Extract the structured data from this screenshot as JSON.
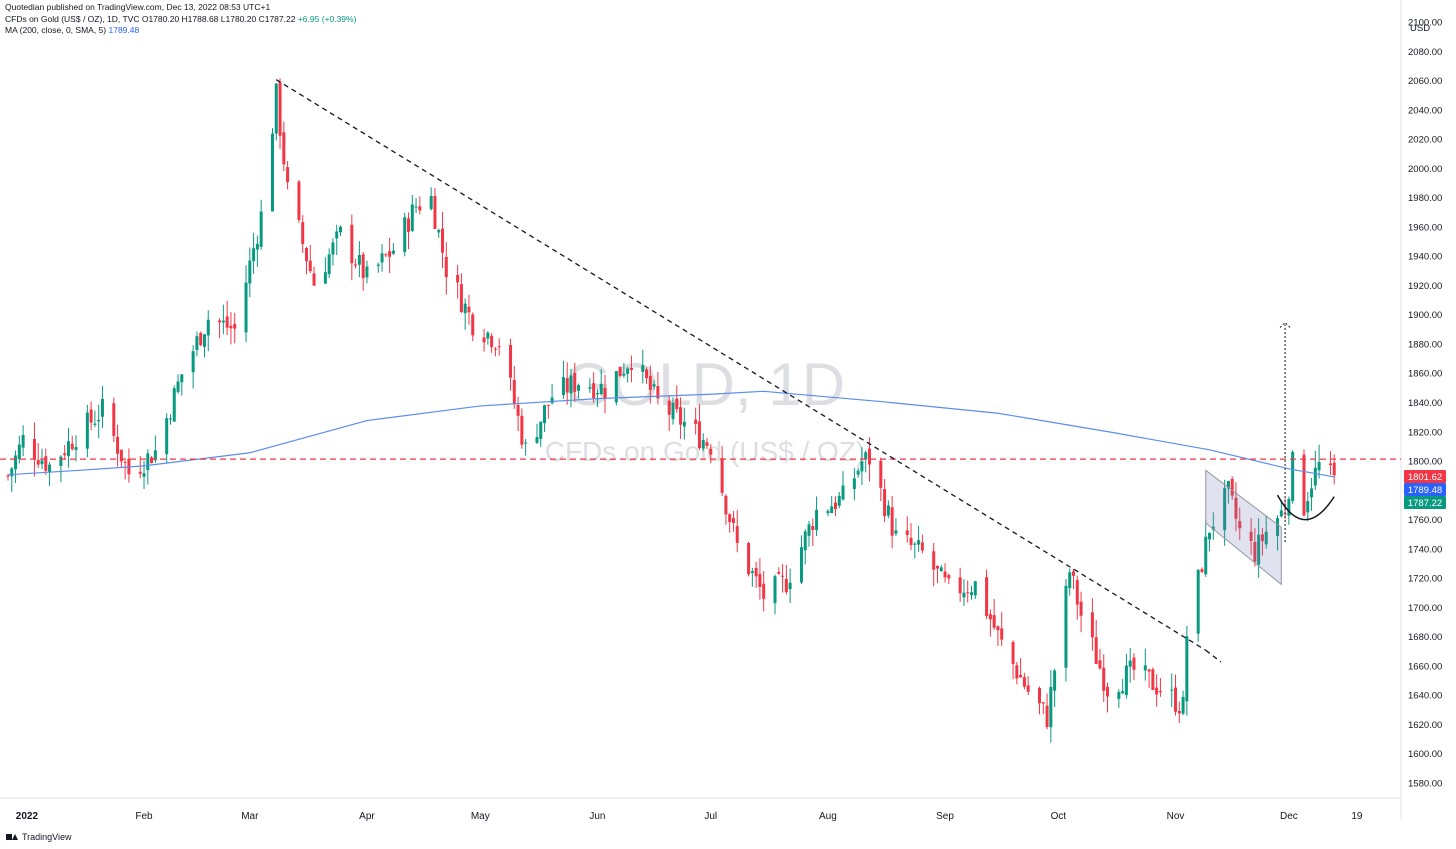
{
  "header": {
    "publisher": "Quotedian published on TradingView.com, Dec 13, 2022 08:53 UTC+1",
    "symbol_line": "CFDs on Gold (US$ / OZ), 1D, TVC",
    "ohlc": "O1780.20  H1788.68  L1780.20  C1787.22",
    "change": "+6.95 (+0.39%)",
    "ma_label": "MA (200, close, 0, SMA, 5)",
    "ma_value": "1789.48"
  },
  "watermark": {
    "symbol": "GOLD, 1D",
    "description": "CFDs on Gold (US$ / OZ)"
  },
  "footer": {
    "brand": "TradingView"
  },
  "colors": {
    "up": "#089981",
    "down": "#f23645",
    "ma": "#5b8def",
    "hline": "#f23645",
    "price_tag": "#089981",
    "ma_tag": "#2962ff"
  },
  "chart_data": {
    "type": "candlestick",
    "currency": "USD",
    "ylim": [
      1570,
      2110
    ],
    "y_ticks": [
      1580,
      1600,
      1620,
      1640,
      1660,
      1680,
      1700,
      1720,
      1740,
      1760,
      1780,
      1800,
      1820,
      1840,
      1860,
      1880,
      1900,
      1920,
      1940,
      1960,
      1980,
      2000,
      2020,
      2040,
      2060,
      2080,
      2100
    ],
    "x_ticks": [
      {
        "label": "2022",
        "date": "2022-01-01"
      },
      {
        "label": "Feb",
        "date": "2022-02-01"
      },
      {
        "label": "Mar",
        "date": "2022-03-01"
      },
      {
        "label": "Apr",
        "date": "2022-04-01"
      },
      {
        "label": "May",
        "date": "2022-05-01"
      },
      {
        "label": "Jun",
        "date": "2022-06-01"
      },
      {
        "label": "Jul",
        "date": "2022-07-01"
      },
      {
        "label": "Aug",
        "date": "2022-08-01"
      },
      {
        "label": "Sep",
        "date": "2022-09-01"
      },
      {
        "label": "Oct",
        "date": "2022-10-01"
      },
      {
        "label": "Nov",
        "date": "2022-11-01"
      },
      {
        "label": "Dec",
        "date": "2022-12-01"
      },
      {
        "label": "19",
        "date": "2022-12-19"
      }
    ],
    "price_tags": [
      {
        "value": 1801.62,
        "label": "1801.62",
        "color": "#f23645"
      },
      {
        "value": 1789.48,
        "label": "1789.48",
        "color": "#2962ff"
      },
      {
        "value": 1787.22,
        "label": "1787.22",
        "color": "#089981"
      }
    ],
    "closes": [
      [
        "2021-12-27",
        1790
      ],
      [
        "2021-12-31",
        1815
      ],
      [
        "2022-01-07",
        1797
      ],
      [
        "2022-01-14",
        1818
      ],
      [
        "2022-01-21",
        1835
      ],
      [
        "2022-01-28",
        1792
      ],
      [
        "2022-02-04",
        1807
      ],
      [
        "2022-02-11",
        1860
      ],
      [
        "2022-02-18",
        1898
      ],
      [
        "2022-02-25",
        1890
      ],
      [
        "2022-03-04",
        1968
      ],
      [
        "2022-03-08",
        2050
      ],
      [
        "2022-03-11",
        1985
      ],
      [
        "2022-03-18",
        1922
      ],
      [
        "2022-03-25",
        1955
      ],
      [
        "2022-04-01",
        1925
      ],
      [
        "2022-04-08",
        1945
      ],
      [
        "2022-04-14",
        1975
      ],
      [
        "2022-04-18",
        1980
      ],
      [
        "2022-04-22",
        1932
      ],
      [
        "2022-04-29",
        1895
      ],
      [
        "2022-05-06",
        1882
      ],
      [
        "2022-05-13",
        1808
      ],
      [
        "2022-05-20",
        1845
      ],
      [
        "2022-05-27",
        1855
      ],
      [
        "2022-06-03",
        1850
      ],
      [
        "2022-06-10",
        1871
      ],
      [
        "2022-06-17",
        1840
      ],
      [
        "2022-06-24",
        1826
      ],
      [
        "2022-07-01",
        1811
      ],
      [
        "2022-07-08",
        1742
      ],
      [
        "2022-07-15",
        1708
      ],
      [
        "2022-07-21",
        1718
      ],
      [
        "2022-07-29",
        1766
      ],
      [
        "2022-08-05",
        1775
      ],
      [
        "2022-08-10",
        1800
      ],
      [
        "2022-08-12",
        1802
      ],
      [
        "2022-08-19",
        1748
      ],
      [
        "2022-08-26",
        1737
      ],
      [
        "2022-09-02",
        1712
      ],
      [
        "2022-09-09",
        1716
      ],
      [
        "2022-09-16",
        1675
      ],
      [
        "2022-09-23",
        1643
      ],
      [
        "2022-09-28",
        1625
      ],
      [
        "2022-10-04",
        1725
      ],
      [
        "2022-10-07",
        1695
      ],
      [
        "2022-10-14",
        1645
      ],
      [
        "2022-10-21",
        1657
      ],
      [
        "2022-10-28",
        1645
      ],
      [
        "2022-11-03",
        1632
      ],
      [
        "2022-11-04",
        1682
      ],
      [
        "2022-11-10",
        1755
      ],
      [
        "2022-11-15",
        1778
      ],
      [
        "2022-11-18",
        1752
      ],
      [
        "2022-11-22",
        1738
      ],
      [
        "2022-11-25",
        1752
      ],
      [
        "2022-11-30",
        1768
      ],
      [
        "2022-12-02",
        1798
      ],
      [
        "2022-12-05",
        1770
      ],
      [
        "2022-12-07",
        1787
      ],
      [
        "2022-12-09",
        1797
      ],
      [
        "2022-12-13",
        1787
      ]
    ],
    "ma200": [
      [
        "2021-12-27",
        1791
      ],
      [
        "2022-01-15",
        1794
      ],
      [
        "2022-02-01",
        1797
      ],
      [
        "2022-03-01",
        1806
      ],
      [
        "2022-04-01",
        1828
      ],
      [
        "2022-05-01",
        1838
      ],
      [
        "2022-06-01",
        1843
      ],
      [
        "2022-07-01",
        1846
      ],
      [
        "2022-07-15",
        1848
      ],
      [
        "2022-08-15",
        1841
      ],
      [
        "2022-09-15",
        1833
      ],
      [
        "2022-10-15",
        1820
      ],
      [
        "2022-11-10",
        1808
      ],
      [
        "2022-12-01",
        1795
      ],
      [
        "2022-12-13",
        1789.48
      ]
    ],
    "horizontal_line": 1801.62,
    "trendline": [
      [
        "2022-03-08",
        2061
      ],
      [
        "2022-11-09",
        1671
      ]
    ],
    "channel": [
      [
        "2022-11-09",
        1794
      ],
      [
        "2022-11-29",
        1755
      ],
      [
        "2022-11-29",
        1716
      ],
      [
        "2022-11-09",
        1758
      ]
    ],
    "target_arrow": {
      "date": "2022-11-30",
      "from": 1745,
      "to": 1895
    },
    "arc": [
      [
        "2022-11-28",
        1777
      ],
      [
        "2022-12-05",
        1755
      ],
      [
        "2022-12-13",
        1776
      ]
    ]
  }
}
